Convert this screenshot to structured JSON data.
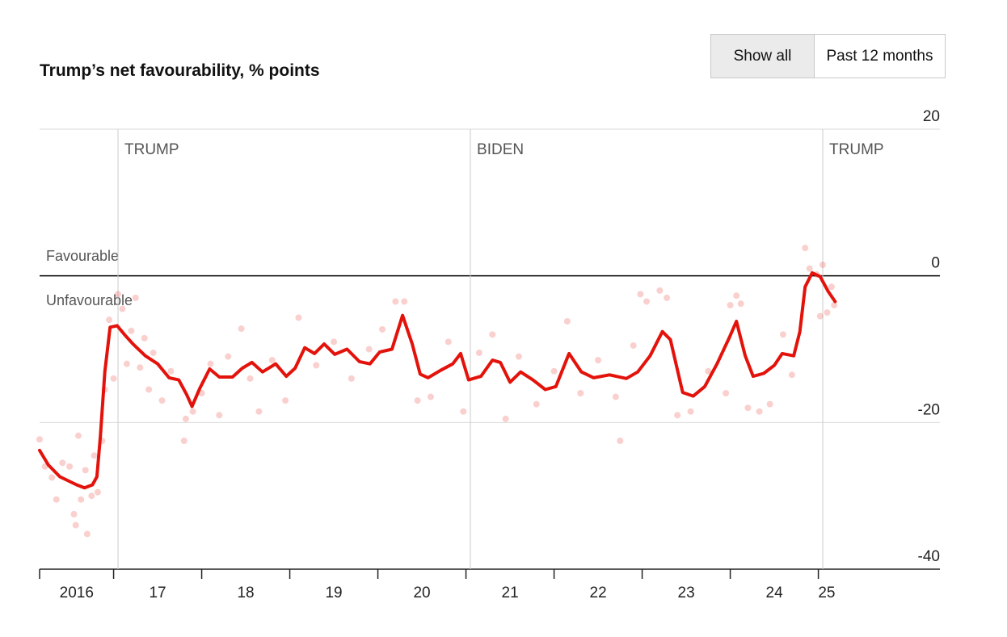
{
  "controls": [
    "Show all",
    "Past 12 months"
  ],
  "chart_data": {
    "type": "line",
    "title": "Trump’s net favourability, % points",
    "labels": {
      "above": "Favourable",
      "below": "Unfavourable"
    },
    "annotations": [
      {
        "label": "TRUMP",
        "x": 2017.05
      },
      {
        "label": "BIDEN",
        "x": 2021.05
      },
      {
        "label": "TRUMP",
        "x": 2025.05
      }
    ],
    "xlim": [
      2016.16,
      2026.38
    ],
    "xticks": [
      {
        "value": 2016,
        "label": "2016"
      },
      {
        "value": 2017,
        "label": "17"
      },
      {
        "value": 2018,
        "label": "18"
      },
      {
        "value": 2019,
        "label": "19"
      },
      {
        "value": 2020,
        "label": "20"
      },
      {
        "value": 2021,
        "label": "21"
      },
      {
        "value": 2022,
        "label": "22"
      },
      {
        "value": 2023,
        "label": "23"
      },
      {
        "value": 2024,
        "label": "24"
      },
      {
        "value": 2025,
        "label": "25"
      }
    ],
    "ylim": [
      -40,
      20
    ],
    "yticks": [
      20,
      0,
      -20,
      -40
    ],
    "grid": true,
    "series": [
      {
        "type": "line",
        "color": "#e3120b",
        "x": [
          2016.16,
          2016.26,
          2016.39,
          2016.58,
          2016.67,
          2016.76,
          2016.81,
          2016.85,
          2016.9,
          2016.96,
          2017.04,
          2017.13,
          2017.22,
          2017.36,
          2017.5,
          2017.63,
          2017.74,
          2017.83,
          2017.89,
          2017.98,
          2018.09,
          2018.2,
          2018.35,
          2018.46,
          2018.57,
          2018.69,
          2018.84,
          2018.96,
          2019.06,
          2019.17,
          2019.28,
          2019.39,
          2019.51,
          2019.65,
          2019.79,
          2019.91,
          2020.02,
          2020.16,
          2020.28,
          2020.39,
          2020.48,
          2020.57,
          2020.71,
          2020.85,
          2020.94,
          2021.03,
          2021.17,
          2021.3,
          2021.39,
          2021.5,
          2021.62,
          2021.76,
          2021.9,
          2022.02,
          2022.17,
          2022.31,
          2022.45,
          2022.63,
          2022.82,
          2022.95,
          2023.09,
          2023.23,
          2023.32,
          2023.46,
          2023.58,
          2023.71,
          2023.85,
          2023.99,
          2024.07,
          2024.17,
          2024.26,
          2024.38,
          2024.5,
          2024.59,
          2024.72,
          2024.79,
          2024.85,
          2024.93,
          2025.02,
          2025.11,
          2025.19
        ],
        "values": [
          -23.8,
          -25.8,
          -27.4,
          -28.5,
          -28.9,
          -28.5,
          -27.4,
          -21.9,
          -13.1,
          -7.0,
          -6.8,
          -8.1,
          -9.3,
          -10.9,
          -12.0,
          -13.9,
          -14.2,
          -16.2,
          -17.8,
          -15.3,
          -12.7,
          -13.8,
          -13.8,
          -12.6,
          -11.8,
          -13.1,
          -12.0,
          -13.7,
          -12.6,
          -9.8,
          -10.6,
          -9.3,
          -10.7,
          -10.0,
          -11.7,
          -12.0,
          -10.4,
          -10.0,
          -5.4,
          -9.3,
          -13.4,
          -13.9,
          -12.9,
          -12.0,
          -10.6,
          -14.2,
          -13.7,
          -11.5,
          -11.8,
          -14.5,
          -13.1,
          -14.2,
          -15.5,
          -15.1,
          -10.6,
          -13.1,
          -13.9,
          -13.5,
          -14.0,
          -13.1,
          -10.9,
          -7.6,
          -8.7,
          -15.9,
          -16.4,
          -15.1,
          -12.0,
          -8.4,
          -6.2,
          -10.9,
          -13.7,
          -13.3,
          -12.2,
          -10.6,
          -10.9,
          -7.6,
          -1.5,
          0.4,
          -0.1,
          -2.1,
          -3.5
        ]
      },
      {
        "type": "scatter",
        "color": "#e3120b",
        "x": [
          2016.16,
          2016.22,
          2016.3,
          2016.35,
          2016.42,
          2016.5,
          2016.55,
          2016.57,
          2016.6,
          2016.63,
          2016.68,
          2016.7,
          2016.75,
          2016.78,
          2016.82,
          2016.87,
          2016.9,
          2016.95,
          2017.0,
          2017.05,
          2017.1,
          2017.15,
          2017.2,
          2017.25,
          2017.3,
          2017.35,
          2017.4,
          2017.45,
          2017.55,
          2017.65,
          2017.8,
          2017.82,
          2017.9,
          2018.0,
          2018.1,
          2018.2,
          2018.3,
          2018.45,
          2018.55,
          2018.65,
          2018.8,
          2018.95,
          2019.1,
          2019.3,
          2019.5,
          2019.7,
          2019.9,
          2020.05,
          2020.2,
          2020.3,
          2020.45,
          2020.6,
          2020.8,
          2020.97,
          2021.15,
          2021.3,
          2021.45,
          2021.6,
          2021.8,
          2022.0,
          2022.15,
          2022.3,
          2022.5,
          2022.7,
          2022.75,
          2022.9,
          2022.98,
          2023.05,
          2023.2,
          2023.28,
          2023.4,
          2023.55,
          2023.75,
          2023.95,
          2024.0,
          2024.07,
          2024.12,
          2024.2,
          2024.33,
          2024.45,
          2024.6,
          2024.7,
          2024.85,
          2024.9,
          2024.98,
          2025.02,
          2025.05,
          2025.1,
          2025.15,
          2025.18
        ],
        "values": [
          -22.3,
          -26,
          -27.5,
          -30.5,
          -25.5,
          -26,
          -32.5,
          -34,
          -21.8,
          -30.5,
          -26.5,
          -35.2,
          -30,
          -24.5,
          -29.5,
          -22.5,
          -15.5,
          -6,
          -14,
          -2.5,
          -4.5,
          -12,
          -7.5,
          -3,
          -12.5,
          -8.5,
          -15.5,
          -10.5,
          -17,
          -13,
          -22.5,
          -19.5,
          -18.5,
          -16,
          -12,
          -19,
          -11,
          -7.2,
          -14,
          -18.5,
          -11.5,
          -17,
          -5.7,
          -12.2,
          -9,
          -14,
          -10,
          -7.3,
          -3.5,
          -3.5,
          -17,
          -16.5,
          -9,
          -18.5,
          -10.5,
          -8,
          -19.5,
          -11,
          -17.5,
          -13,
          -6.2,
          -16,
          -11.5,
          -16.5,
          -22.5,
          -9.5,
          -2.5,
          -3.5,
          -2,
          -3,
          -19,
          -18.5,
          -13,
          -16,
          -4,
          -2.7,
          -3.8,
          -18,
          -18.5,
          -17.5,
          -8,
          -13.5,
          3.8,
          1,
          0.2,
          -5.5,
          1.5,
          -5,
          -1.5,
          -4
        ]
      }
    ]
  }
}
